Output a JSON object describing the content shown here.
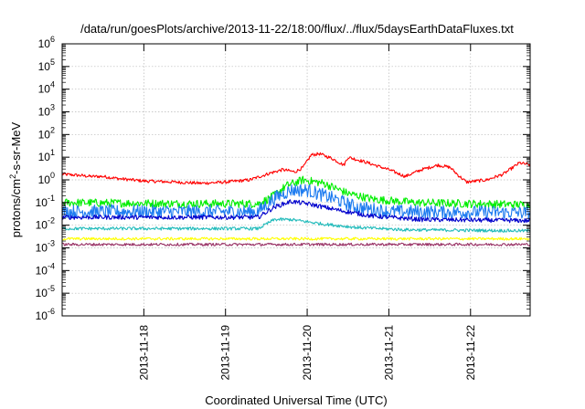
{
  "chart_data": {
    "type": "line",
    "title": "/data/run/goesPlots/archive/2013-11-22/18:00/flux/../flux/5daysEarthDataFluxes.txt",
    "xlabel": "Coordinated Universal Time (UTC)",
    "ylabel_parts": [
      "protons/cm",
      "2",
      "-s-sr-MeV"
    ],
    "y_scale": "log",
    "ylim_exp": [
      -6,
      6
    ],
    "y_ticks": [
      {
        "base": "10",
        "exp": "-6",
        "v": -6
      },
      {
        "base": "10",
        "exp": "-5",
        "v": -5
      },
      {
        "base": "10",
        "exp": "-4",
        "v": -4
      },
      {
        "base": "10",
        "exp": "-3",
        "v": -3
      },
      {
        "base": "10",
        "exp": "-2",
        "v": -2
      },
      {
        "base": "10",
        "exp": "-1",
        "v": -1
      },
      {
        "base": "10",
        "exp": "0",
        "v": 0
      },
      {
        "base": "10",
        "exp": "1",
        "v": 1
      },
      {
        "base": "10",
        "exp": "2",
        "v": 2
      },
      {
        "base": "10",
        "exp": "3",
        "v": 3
      },
      {
        "base": "10",
        "exp": "4",
        "v": 4
      },
      {
        "base": "10",
        "exp": "5",
        "v": 5
      },
      {
        "base": "10",
        "exp": "6",
        "v": 6
      }
    ],
    "x_range_days": [
      0,
      5.73
    ],
    "x_ticks": [
      {
        "label": "2013-11-18",
        "day": 1
      },
      {
        "label": "2013-11-19",
        "day": 2
      },
      {
        "label": "2013-11-20",
        "day": 3
      },
      {
        "label": "2013-11-21",
        "day": 4
      },
      {
        "label": "2013-11-22",
        "day": 5
      }
    ],
    "grid": true,
    "series": [
      {
        "color": "#ff0000",
        "noise": 0.07,
        "points": [
          [
            0,
            0.25
          ],
          [
            0.2,
            0.2
          ],
          [
            0.35,
            0.15
          ],
          [
            0.5,
            0.15
          ],
          [
            0.7,
            0.05
          ],
          [
            1.0,
            -0.05
          ],
          [
            1.4,
            -0.1
          ],
          [
            1.7,
            -0.15
          ],
          [
            2.0,
            -0.1
          ],
          [
            2.3,
            0.0
          ],
          [
            2.55,
            0.3
          ],
          [
            2.7,
            0.45
          ],
          [
            2.85,
            0.35
          ],
          [
            2.95,
            0.55
          ],
          [
            3.05,
            1.1
          ],
          [
            3.15,
            1.15
          ],
          [
            3.3,
            0.95
          ],
          [
            3.45,
            0.65
          ],
          [
            3.5,
            1.0
          ],
          [
            3.7,
            0.8
          ],
          [
            4.0,
            0.45
          ],
          [
            4.2,
            0.15
          ],
          [
            4.4,
            0.45
          ],
          [
            4.6,
            0.65
          ],
          [
            4.75,
            0.55
          ],
          [
            4.85,
            0.2
          ],
          [
            4.95,
            -0.1
          ],
          [
            5.2,
            0.0
          ],
          [
            5.4,
            0.25
          ],
          [
            5.6,
            0.75
          ],
          [
            5.73,
            0.65
          ]
        ]
      },
      {
        "color": "#00ee00",
        "noise": 0.18,
        "points": [
          [
            0,
            -1.0
          ],
          [
            1.5,
            -1.05
          ],
          [
            2.4,
            -1.05
          ],
          [
            2.55,
            -0.8
          ],
          [
            2.75,
            -0.25
          ],
          [
            2.95,
            0.0
          ],
          [
            3.2,
            -0.15
          ],
          [
            3.5,
            -0.6
          ],
          [
            3.8,
            -0.85
          ],
          [
            4.3,
            -1.0
          ],
          [
            5.0,
            -1.05
          ],
          [
            5.73,
            -1.1
          ]
        ]
      },
      {
        "color": "#1e7cf0",
        "noise": 0.3,
        "points": [
          [
            0,
            -1.4
          ],
          [
            1.5,
            -1.4
          ],
          [
            2.4,
            -1.4
          ],
          [
            2.6,
            -0.8
          ],
          [
            2.8,
            -0.45
          ],
          [
            3.0,
            -0.45
          ],
          [
            3.3,
            -0.8
          ],
          [
            3.6,
            -1.2
          ],
          [
            4.0,
            -1.4
          ],
          [
            5.73,
            -1.45
          ]
        ]
      },
      {
        "color": "#0000cc",
        "noise": 0.1,
        "points": [
          [
            0,
            -1.65
          ],
          [
            2.4,
            -1.65
          ],
          [
            2.6,
            -1.2
          ],
          [
            2.8,
            -0.95
          ],
          [
            3.0,
            -1.05
          ],
          [
            3.4,
            -1.35
          ],
          [
            3.8,
            -1.6
          ],
          [
            4.4,
            -1.75
          ],
          [
            5.73,
            -1.8
          ]
        ]
      },
      {
        "color": "#22bbbb",
        "noise": 0.07,
        "points": [
          [
            0,
            -2.15
          ],
          [
            2.4,
            -2.15
          ],
          [
            2.6,
            -1.75
          ],
          [
            2.8,
            -1.75
          ],
          [
            3.2,
            -1.95
          ],
          [
            3.6,
            -2.1
          ],
          [
            4.2,
            -2.2
          ],
          [
            5.73,
            -2.25
          ]
        ]
      },
      {
        "color": "#ffff00",
        "noise": 0.06,
        "points": [
          [
            0,
            -2.6
          ],
          [
            5.73,
            -2.6
          ]
        ]
      },
      {
        "color": "#993366",
        "noise": 0.06,
        "points": [
          [
            0,
            -2.85
          ],
          [
            5.73,
            -2.85
          ]
        ]
      }
    ]
  }
}
